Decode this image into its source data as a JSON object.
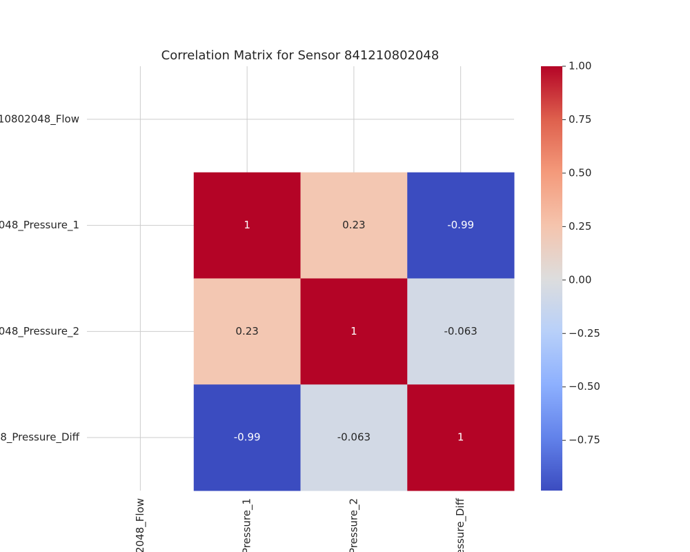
{
  "chart_data": {
    "type": "heatmap",
    "title": "Correlation Matrix for Sensor 841210802048",
    "row_labels": [
      "10802048_Flow",
      "048_Pressure_1",
      "048_Pressure_2",
      "8_Pressure_Diff"
    ],
    "col_labels": [
      "2048_Flow",
      "Pressure_1",
      "Pressure_2",
      "ressure_Diff"
    ],
    "values": [
      [
        null,
        null,
        null,
        null
      ],
      [
        null,
        1,
        0.23,
        -0.99
      ],
      [
        null,
        0.23,
        1,
        -0.063
      ],
      [
        null,
        -0.99,
        -0.063,
        1
      ]
    ],
    "colormap": "coolwarm",
    "clim": [
      -0.985,
      1
    ],
    "cticks": [
      {
        "value": 1,
        "label": "1.00"
      },
      {
        "value": 0.75,
        "label": "0.75"
      },
      {
        "value": 0.5,
        "label": "0.50"
      },
      {
        "value": 0.25,
        "label": "0.25"
      },
      {
        "value": 0,
        "label": "0.00"
      },
      {
        "value": -0.25,
        "label": "−0.25"
      },
      {
        "value": -0.5,
        "label": "−0.50"
      },
      {
        "value": -0.75,
        "label": "−0.75"
      }
    ],
    "grid": true
  }
}
